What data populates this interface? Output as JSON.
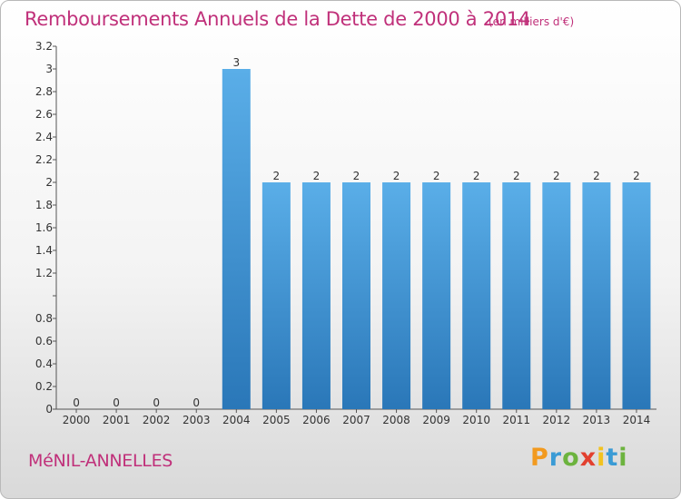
{
  "header": {
    "title": "Remboursements Annuels de la Dette de 2000 à 2014",
    "units": "(en milliers d'€)"
  },
  "footer": {
    "town": "MéNIL-ANNELLES",
    "logo": [
      "P",
      "r",
      "o",
      "x",
      "i",
      "t",
      "i"
    ]
  },
  "colors": {
    "accent": "#c0307a",
    "bar_top": "#5aaee8",
    "bar_bottom": "#2a77b8"
  },
  "chart_data": {
    "type": "bar",
    "title": "Remboursements Annuels de la Dette de 2000 à 2014",
    "xlabel": "",
    "ylabel": "",
    "categories": [
      "2000",
      "2001",
      "2002",
      "2003",
      "2004",
      "2005",
      "2006",
      "2007",
      "2008",
      "2009",
      "2010",
      "2011",
      "2012",
      "2013",
      "2014"
    ],
    "values": [
      0,
      0,
      0,
      0,
      3,
      2,
      2,
      2,
      2,
      2,
      2,
      2,
      2,
      2,
      2
    ],
    "data_labels": [
      "0",
      "0",
      "0",
      "0",
      "3",
      "2",
      "2",
      "2",
      "2",
      "2",
      "2",
      "2",
      "2",
      "2",
      "2"
    ],
    "ylim": [
      0,
      3.2
    ],
    "y_ticks": [
      0,
      0.2,
      0.4,
      0.6,
      0.8,
      1,
      1.2,
      1.4,
      1.6,
      1.8,
      2,
      2.2,
      2.4,
      2.6,
      2.8,
      3,
      3.2
    ],
    "y_tick_labels": [
      "0",
      "0.2",
      "0.4",
      "0.6",
      "0.8",
      "",
      "1.2",
      "1.4",
      "1.6",
      "1.8",
      "2",
      "2.2",
      "2.4",
      "2.6",
      "2.8",
      "3",
      "3.2"
    ],
    "grid": false,
    "legend": "none"
  }
}
